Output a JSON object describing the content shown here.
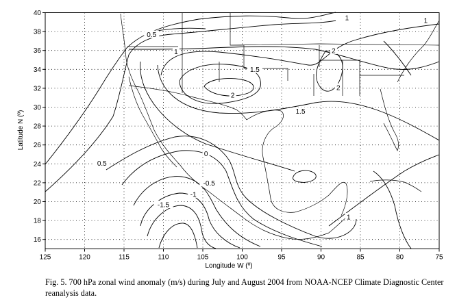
{
  "chart_data": {
    "type": "contour",
    "xlabel": "Longitude W (º)",
    "ylabel": "Latitude N (º)",
    "x_ticks": [
      "125",
      "120",
      "115",
      "110",
      "105",
      "100",
      "95",
      "90",
      "85",
      "80",
      "75"
    ],
    "y_ticks": [
      "16",
      "18",
      "20",
      "22",
      "24",
      "26",
      "28",
      "30",
      "32",
      "34",
      "36",
      "38",
      "40"
    ],
    "xlim": [
      125,
      75
    ],
    "ylim": [
      15,
      40
    ],
    "grid": true,
    "grid_style": "dotted",
    "contour_labels": [
      {
        "text": "0.5",
        "lon": 111.5,
        "lat": 37.6
      },
      {
        "text": "1",
        "lon": 86.7,
        "lat": 39.4
      },
      {
        "text": "1",
        "lon": 76.7,
        "lat": 39.1
      },
      {
        "text": "1",
        "lon": 108.4,
        "lat": 35.8
      },
      {
        "text": "1.5",
        "lon": 98.4,
        "lat": 33.9
      },
      {
        "text": "2",
        "lon": 88.4,
        "lat": 35.9
      },
      {
        "text": "2",
        "lon": 87.8,
        "lat": 32.0
      },
      {
        "text": "2",
        "lon": 101.2,
        "lat": 31.2
      },
      {
        "text": "1.5",
        "lon": 92.6,
        "lat": 29.5
      },
      {
        "text": "0.5",
        "lon": 117.8,
        "lat": 24.0
      },
      {
        "text": "0",
        "lon": 104.6,
        "lat": 25.0
      },
      {
        "text": "-0.5",
        "lon": 104.2,
        "lat": 21.9
      },
      {
        "text": "-1",
        "lon": 106.2,
        "lat": 20.7
      },
      {
        "text": "-1.5",
        "lon": 110.0,
        "lat": 19.6
      },
      {
        "text": "1",
        "lon": 86.5,
        "lat": 18.3
      }
    ]
  },
  "caption": "Fig. 5. 700 hPa zonal wind anomaly (m/s) during July and August 2004 from NOAA-NCEP Climate Diagnostic Center reanalysis data.",
  "colors": {
    "line": "#000000",
    "background": "#ffffff"
  }
}
